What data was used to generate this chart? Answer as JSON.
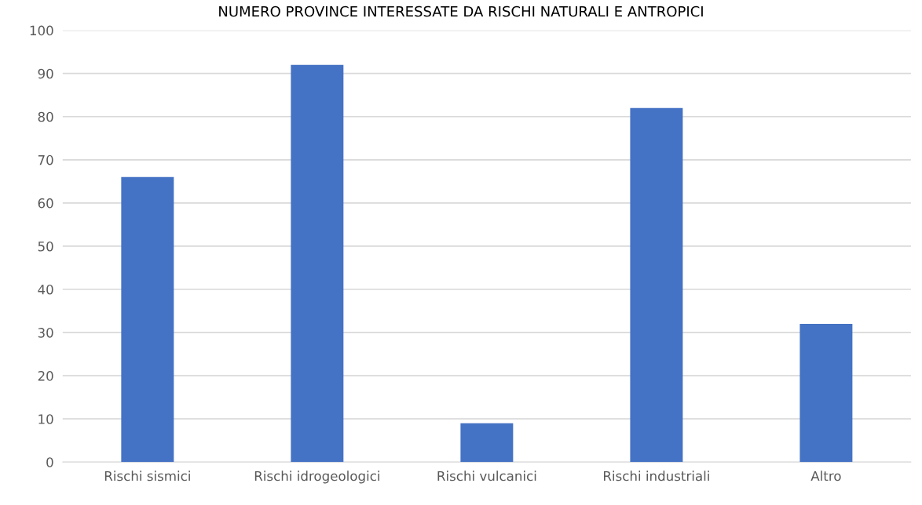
{
  "chart_data": {
    "type": "bar",
    "title": "NUMERO PROVINCE INTERESSATE DA RISCHI NATURALI E ANTROPICI",
    "categories": [
      "Rischi sismici",
      "Rischi idrogeologici",
      "Rischi vulcanici",
      "Rischi industriali",
      "Altro"
    ],
    "values": [
      66,
      92,
      9,
      82,
      32
    ],
    "color": "#4472c4",
    "ylim": [
      0,
      100
    ],
    "yticks": [
      0,
      10,
      20,
      30,
      40,
      50,
      60,
      70,
      80,
      90,
      100
    ],
    "grid": "y",
    "legend": false
  }
}
